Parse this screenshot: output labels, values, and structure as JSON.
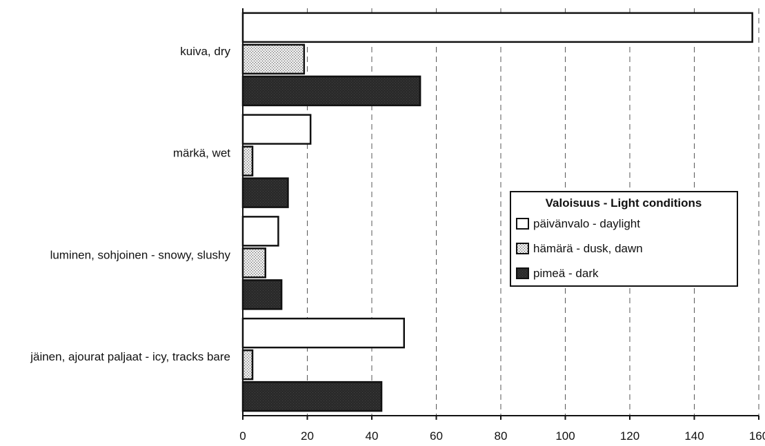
{
  "chart_data": {
    "type": "bar",
    "orientation": "horizontal",
    "title": "",
    "xlabel": "",
    "ylabel": "",
    "xlim": [
      0,
      160
    ],
    "x_ticks": [
      0,
      20,
      40,
      60,
      80,
      100,
      120,
      140,
      160
    ],
    "grid": "vertical dashed",
    "legend_position": "right-center",
    "categories": [
      "kuiva, dry",
      "märkä, wet",
      "luminen, sohjoinen - snowy, slushy",
      "jäinen, ajourat paljaat - icy, tracks bare"
    ],
    "legend_title": "Valoisuus - Light conditions",
    "series": [
      {
        "name": "päivänvalo - daylight",
        "values": [
          158,
          21,
          11,
          50
        ],
        "fill": "#ffffff",
        "pattern": "solid-white"
      },
      {
        "name": "hämärä - dusk, dawn",
        "values": [
          19,
          3,
          7,
          3
        ],
        "fill": "#cfcfcf",
        "pattern": "stipple"
      },
      {
        "name": "pimeä - dark",
        "values": [
          55,
          14,
          12,
          43
        ],
        "fill": "#2b2b2b",
        "pattern": "dark"
      }
    ]
  }
}
